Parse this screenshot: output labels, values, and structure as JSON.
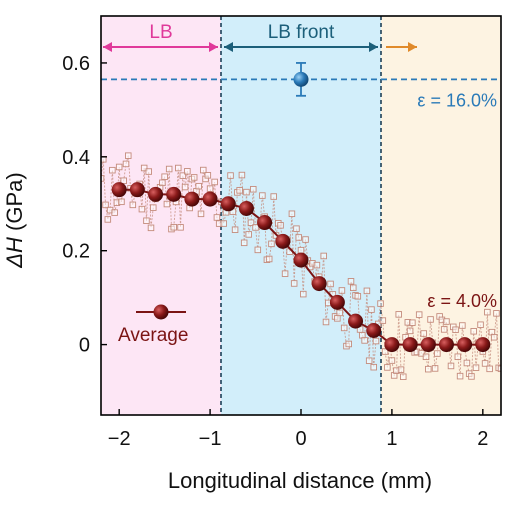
{
  "chart_data": {
    "type": "scatter",
    "xlabel": "Longitudinal distance (mm)",
    "ylabel_prefix": "ΔH",
    "ylabel_suffix": " (GPa)",
    "xlim": [
      -2.2,
      2.2
    ],
    "ylim": [
      -0.15,
      0.7
    ],
    "xticks": [
      -2,
      -1,
      0,
      1,
      2
    ],
    "yticks": [
      0,
      0.2,
      0.4,
      0.6
    ],
    "xtick_labels": [
      "−2",
      "−1",
      "0",
      "1",
      "2"
    ],
    "ytick_labels": [
      "0",
      "0.2",
      "0.4",
      "0.6"
    ],
    "regions": [
      {
        "label": "LB",
        "x0": -2.2,
        "x1": -0.88,
        "color": "#fde6f5",
        "arrow_color": "#e0399a"
      },
      {
        "label": "LB front",
        "x0": -0.88,
        "x1": 0.88,
        "color": "#d2eefa",
        "arrow_color": "#1c5f7a"
      },
      {
        "label": "",
        "x0": 0.88,
        "x1": 2.2,
        "color": "#fdf3e2",
        "arrow_color": "#e08a2b"
      }
    ],
    "reference_line": {
      "y": 0.565,
      "label": "ε = 16.0%",
      "color": "#2a7ab8"
    },
    "reference_point": {
      "x": 0.0,
      "y": 0.565,
      "yerr": 0.035,
      "color": "#2a7ab8"
    },
    "series": [
      {
        "name": "Average",
        "color": "#7b1414",
        "x": [
          -2.0,
          -1.8,
          -1.6,
          -1.4,
          -1.2,
          -1.0,
          -0.8,
          -0.6,
          -0.4,
          -0.2,
          0.0,
          0.2,
          0.4,
          0.6,
          0.8,
          1.0,
          1.2,
          1.4,
          1.6,
          1.8,
          2.0
        ],
        "y": [
          0.33,
          0.33,
          0.32,
          0.32,
          0.31,
          0.31,
          0.3,
          0.29,
          0.26,
          0.22,
          0.18,
          0.13,
          0.09,
          0.05,
          0.03,
          0.0,
          0.0,
          0.0,
          0.0,
          0.0,
          0.0
        ]
      }
    ],
    "annotation": {
      "label": "ε = 4.0%",
      "color": "#7b1414"
    },
    "raw_marker_color": "#c48b7c"
  }
}
